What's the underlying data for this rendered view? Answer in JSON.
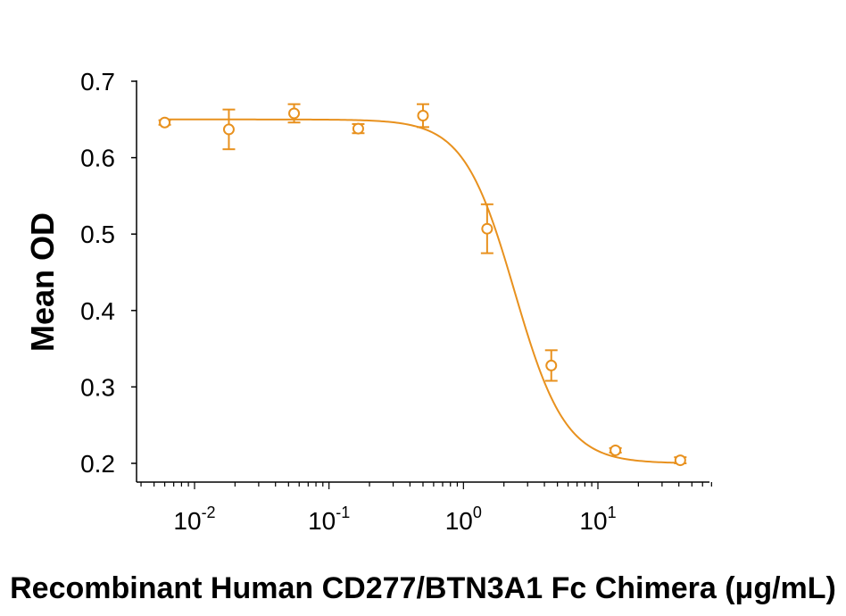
{
  "chart_data": {
    "type": "scatter",
    "title": "",
    "xlabel": "Recombinant Human CD277/BTN3A1 Fc Chimera (μg/mL)",
    "ylabel": "Mean OD",
    "x_scale": "log",
    "xlim": [
      0.004,
      70
    ],
    "ylim": [
      0.19,
      0.7
    ],
    "x_tick_labels": [
      {
        "base": "10",
        "exp": "-2",
        "value": 0.01
      },
      {
        "base": "10",
        "exp": "-1",
        "value": 0.1
      },
      {
        "base": "10",
        "exp": "0",
        "value": 1
      },
      {
        "base": "10",
        "exp": "1",
        "value": 10
      }
    ],
    "y_ticks": [
      0.2,
      0.3,
      0.4,
      0.5,
      0.6,
      0.7
    ],
    "y_tick_labels": [
      "0.2",
      "0.3",
      "0.4",
      "0.5",
      "0.6",
      "0.7"
    ],
    "grid": false,
    "color": "#E8911E",
    "series": [
      {
        "x": [
          0.006,
          0.018,
          0.055,
          0.165,
          0.5,
          1.5,
          4.5,
          13.5,
          41
        ],
        "y": [
          0.646,
          0.637,
          0.658,
          0.638,
          0.655,
          0.507,
          0.328,
          0.217,
          0.204
        ],
        "err": [
          0.003,
          0.026,
          0.012,
          0.006,
          0.015,
          0.032,
          0.02,
          0.003,
          0.004
        ]
      }
    ],
    "fit": {
      "model": "4PL",
      "top": 0.65,
      "bottom": 0.2,
      "ec50": 2.4,
      "hill": 2.3
    }
  }
}
